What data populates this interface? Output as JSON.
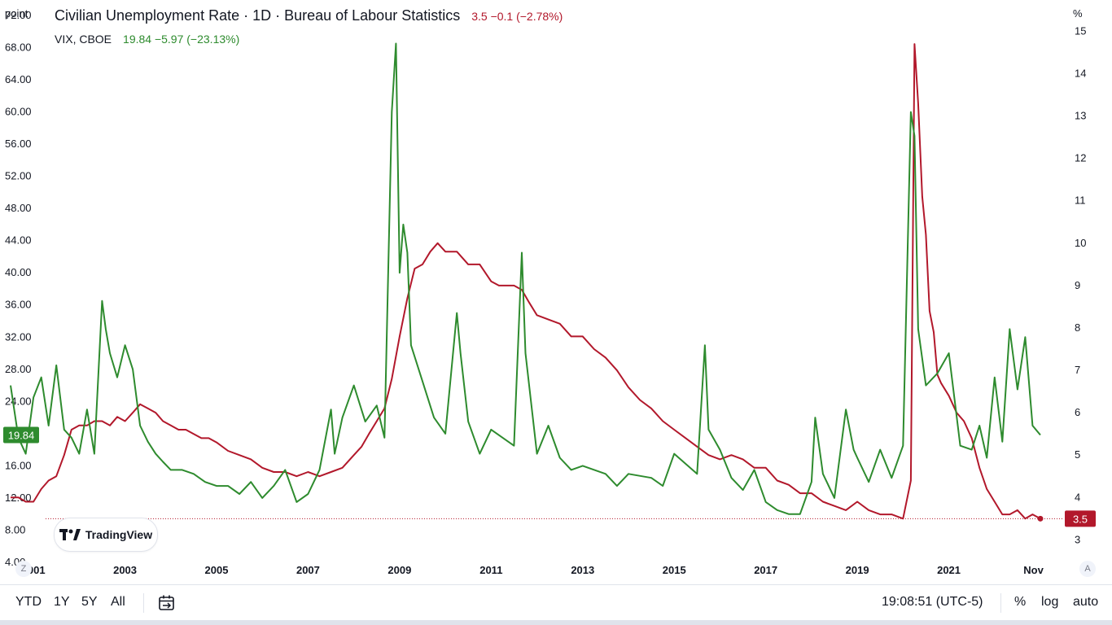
{
  "header": {
    "title": "Civilian Unemployment Rate · 1D · Bureau of Labour Statistics",
    "main_values": "3.5 −0.1 (−2.78%)",
    "vix_label": "VIX, CBOE",
    "vix_values": "19.84 −5.97 (−23.13%)"
  },
  "axes": {
    "left_unit": "point",
    "right_unit": "%",
    "left_ticks": [
      "72.00",
      "68.00",
      "64.00",
      "60.00",
      "56.00",
      "52.00",
      "48.00",
      "44.00",
      "40.00",
      "36.00",
      "32.00",
      "28.00",
      "24.00",
      "20.00",
      "16.00",
      "12.00",
      "8.00",
      "4.00"
    ],
    "right_ticks": [
      "15",
      "14",
      "13",
      "12",
      "11",
      "10",
      "9",
      "8",
      "7",
      "6",
      "5",
      "4",
      "3"
    ],
    "x_ticks": [
      "2001",
      "2003",
      "2005",
      "2007",
      "2009",
      "2011",
      "2013",
      "2015",
      "2017",
      "2019",
      "2021",
      "Nov"
    ],
    "vix_last_badge": "19.84",
    "unemp_last_badge": "3.5"
  },
  "colors": {
    "vix": "#2e8b2e",
    "unemployment": "#b2182b",
    "text": "#131722"
  },
  "branding": {
    "logo_text": "TradingView"
  },
  "corner_buttons": {
    "left": "Z",
    "right": "A"
  },
  "toolbar": {
    "ranges": [
      "YTD",
      "1Y",
      "5Y",
      "All"
    ],
    "time": "19:08:51 (UTC-5)",
    "percent": "%",
    "log": "log",
    "auto": "auto"
  },
  "chart_data": {
    "type": "line",
    "title": "Civilian Unemployment Rate · 1D · Bureau of Labour Statistics",
    "x_range": [
      2000.5,
      2023.0
    ],
    "series": [
      {
        "name": "Civilian Unemployment Rate",
        "axis": "right",
        "unit": "%",
        "ylim": [
          2.45,
          15.45
        ],
        "x": [
          2000.5,
          2000.67,
          2000.83,
          2001.0,
          2001.17,
          2001.33,
          2001.5,
          2001.67,
          2001.83,
          2002.0,
          2002.17,
          2002.33,
          2002.5,
          2002.67,
          2002.83,
          2003.0,
          2003.17,
          2003.33,
          2003.5,
          2003.67,
          2003.83,
          2004.0,
          2004.17,
          2004.33,
          2004.5,
          2004.67,
          2004.83,
          2005.0,
          2005.25,
          2005.5,
          2005.75,
          2006.0,
          2006.25,
          2006.5,
          2006.75,
          2007.0,
          2007.25,
          2007.5,
          2007.75,
          2008.0,
          2008.17,
          2008.33,
          2008.5,
          2008.67,
          2008.83,
          2009.0,
          2009.17,
          2009.33,
          2009.5,
          2009.67,
          2009.83,
          2010.0,
          2010.25,
          2010.5,
          2010.75,
          2011.0,
          2011.17,
          2011.33,
          2011.5,
          2011.67,
          2011.83,
          2012.0,
          2012.25,
          2012.5,
          2012.75,
          2013.0,
          2013.25,
          2013.5,
          2013.75,
          2014.0,
          2014.25,
          2014.5,
          2014.75,
          2015.0,
          2015.25,
          2015.5,
          2015.75,
          2016.0,
          2016.25,
          2016.5,
          2016.75,
          2017.0,
          2017.25,
          2017.5,
          2017.75,
          2018.0,
          2018.25,
          2018.5,
          2018.75,
          2019.0,
          2019.25,
          2019.5,
          2019.75,
          2020.0,
          2020.17,
          2020.25,
          2020.33,
          2020.42,
          2020.5,
          2020.58,
          2020.67,
          2020.75,
          2020.83,
          2021.0,
          2021.17,
          2021.33,
          2021.5,
          2021.67,
          2021.83,
          2022.0,
          2022.17,
          2022.33,
          2022.5,
          2022.67,
          2022.83,
          2023.0
        ],
        "values": [
          4.0,
          4.0,
          3.9,
          3.9,
          4.2,
          4.4,
          4.5,
          5.0,
          5.6,
          5.7,
          5.7,
          5.8,
          5.8,
          5.7,
          5.9,
          5.8,
          6.0,
          6.2,
          6.1,
          6.0,
          5.8,
          5.7,
          5.6,
          5.6,
          5.5,
          5.4,
          5.4,
          5.3,
          5.1,
          5.0,
          4.9,
          4.7,
          4.6,
          4.6,
          4.5,
          4.6,
          4.5,
          4.6,
          4.7,
          5.0,
          5.2,
          5.5,
          5.8,
          6.1,
          6.8,
          7.8,
          8.7,
          9.4,
          9.5,
          9.8,
          10.0,
          9.8,
          9.8,
          9.5,
          9.5,
          9.1,
          9.0,
          9.0,
          9.0,
          8.9,
          8.6,
          8.3,
          8.2,
          8.1,
          7.8,
          7.8,
          7.5,
          7.3,
          7.0,
          6.6,
          6.3,
          6.1,
          5.8,
          5.6,
          5.4,
          5.2,
          5.0,
          4.9,
          5.0,
          4.9,
          4.7,
          4.7,
          4.4,
          4.3,
          4.1,
          4.1,
          3.9,
          3.8,
          3.7,
          3.9,
          3.7,
          3.6,
          3.6,
          3.5,
          4.4,
          14.7,
          13.3,
          11.1,
          10.2,
          8.4,
          7.9,
          6.9,
          6.7,
          6.4,
          6.0,
          5.8,
          5.4,
          4.7,
          4.2,
          3.9,
          3.6,
          3.6,
          3.7,
          3.5,
          3.6,
          3.5
        ]
      },
      {
        "name": "VIX, CBOE",
        "axis": "left",
        "unit": "point",
        "ylim": [
          3.9,
          72.4
        ],
        "x": [
          2000.5,
          2000.67,
          2000.83,
          2001.0,
          2001.17,
          2001.33,
          2001.5,
          2001.67,
          2001.83,
          2002.0,
          2002.17,
          2002.33,
          2002.5,
          2002.58,
          2002.67,
          2002.83,
          2003.0,
          2003.17,
          2003.33,
          2003.5,
          2003.67,
          2003.83,
          2004.0,
          2004.25,
          2004.5,
          2004.75,
          2005.0,
          2005.25,
          2005.5,
          2005.75,
          2006.0,
          2006.25,
          2006.5,
          2006.75,
          2007.0,
          2007.25,
          2007.5,
          2007.58,
          2007.75,
          2008.0,
          2008.25,
          2008.5,
          2008.67,
          2008.83,
          2008.92,
          2009.0,
          2009.08,
          2009.17,
          2009.25,
          2009.5,
          2009.75,
          2010.0,
          2010.25,
          2010.33,
          2010.5,
          2010.75,
          2011.0,
          2011.5,
          2011.67,
          2011.75,
          2012.0,
          2012.25,
          2012.5,
          2012.75,
          2013.0,
          2013.5,
          2013.75,
          2014.0,
          2014.5,
          2014.75,
          2015.0,
          2015.5,
          2015.67,
          2015.75,
          2016.0,
          2016.25,
          2016.5,
          2016.75,
          2017.0,
          2017.25,
          2017.5,
          2017.75,
          2018.0,
          2018.08,
          2018.25,
          2018.5,
          2018.75,
          2018.92,
          2019.0,
          2019.25,
          2019.5,
          2019.75,
          2020.0,
          2020.17,
          2020.25,
          2020.33,
          2020.5,
          2020.75,
          2021.0,
          2021.25,
          2021.5,
          2021.67,
          2021.83,
          2022.0,
          2022.17,
          2022.33,
          2022.5,
          2022.67,
          2022.83,
          2023.0
        ],
        "values": [
          26.0,
          19.5,
          17.5,
          24.5,
          27.0,
          21.0,
          28.5,
          20.5,
          19.5,
          17.5,
          23.0,
          17.5,
          36.5,
          33.0,
          30.0,
          27.0,
          31.0,
          28.0,
          21.0,
          19.0,
          17.5,
          16.5,
          15.5,
          15.5,
          15.0,
          14.0,
          13.5,
          13.5,
          12.5,
          14.0,
          12.0,
          13.5,
          15.5,
          11.5,
          12.5,
          15.5,
          23.0,
          17.5,
          22.0,
          26.0,
          21.5,
          23.5,
          19.5,
          60.0,
          68.5,
          40.0,
          46.0,
          42.5,
          31.0,
          26.5,
          22.0,
          20.0,
          35.0,
          30.0,
          21.5,
          17.5,
          20.5,
          18.5,
          42.5,
          30.0,
          17.5,
          21.0,
          17.0,
          15.5,
          16.0,
          15.0,
          13.5,
          15.0,
          14.5,
          13.5,
          17.5,
          15.0,
          31.0,
          20.5,
          18.0,
          14.5,
          13.0,
          15.5,
          11.5,
          10.5,
          10.0,
          10.0,
          14.0,
          22.0,
          15.0,
          12.0,
          23.0,
          18.0,
          17.0,
          14.0,
          18.0,
          14.5,
          18.5,
          60.0,
          57.0,
          33.0,
          26.0,
          27.5,
          30.0,
          18.5,
          18.0,
          21.0,
          17.0,
          27.0,
          19.0,
          33.0,
          25.5,
          32.0,
          21.0,
          19.84
        ]
      }
    ]
  }
}
